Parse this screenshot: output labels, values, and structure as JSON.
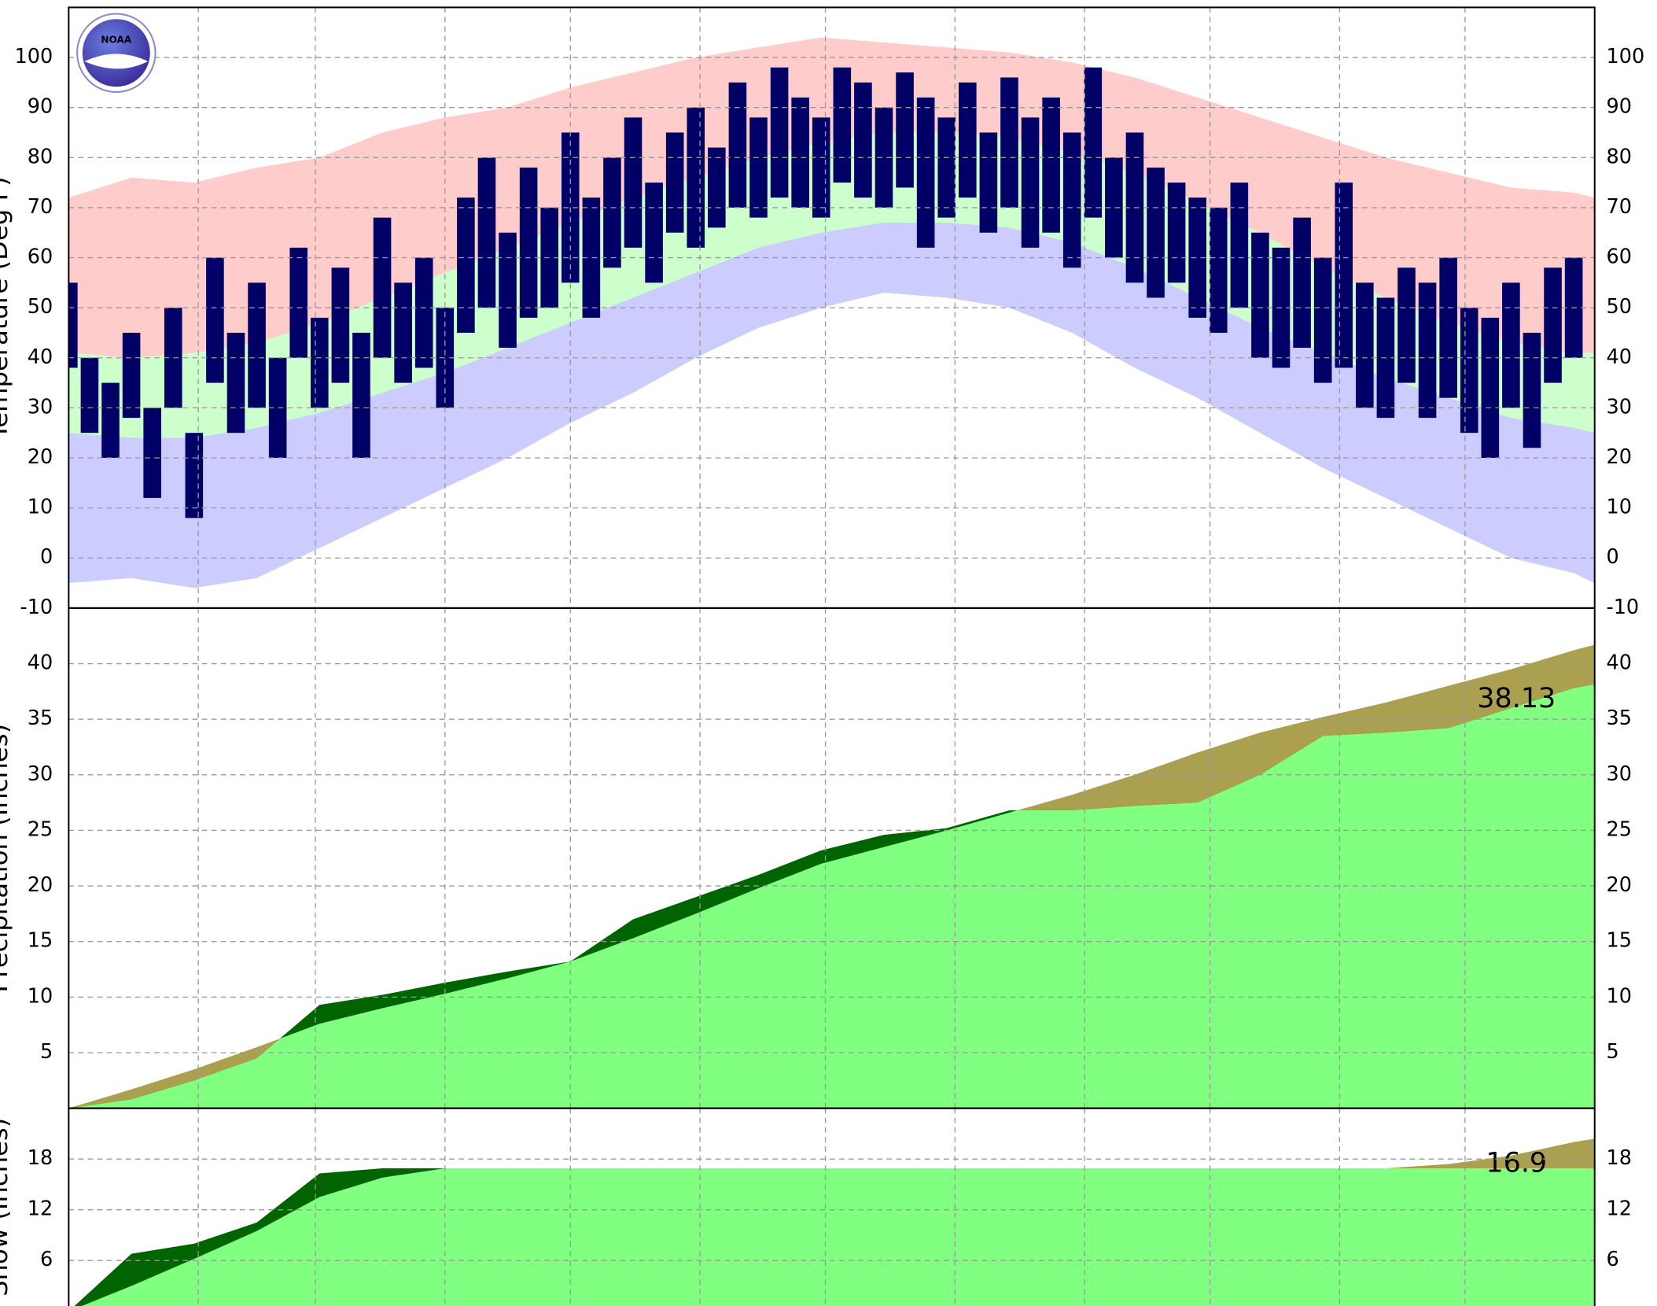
{
  "logo_text": "NOAA",
  "chart_data": [
    {
      "type": "range",
      "ylabel": "Temperature (Deg F)",
      "ylim": [
        -10,
        110
      ],
      "yticks": [
        -10,
        0,
        10,
        20,
        30,
        40,
        50,
        60,
        70,
        80,
        90,
        100
      ],
      "xlim": [
        0,
        365
      ],
      "xticks": [
        31,
        59,
        90,
        120,
        151,
        181,
        212,
        243,
        273,
        304,
        334
      ],
      "grid": true,
      "x": [
        0,
        15,
        30,
        45,
        60,
        75,
        90,
        105,
        120,
        135,
        150,
        165,
        180,
        195,
        210,
        225,
        240,
        255,
        270,
        285,
        300,
        315,
        330,
        345,
        360,
        365
      ],
      "series": [
        {
          "color": "#ffcccc",
          "values": [
            72,
            76,
            75,
            78,
            80,
            85,
            88,
            90,
            94,
            97,
            100,
            102,
            104,
            103,
            102,
            101,
            99,
            96,
            92,
            88,
            84,
            80,
            77,
            74,
            73,
            72
          ]
        },
        {
          "color": "#ccffcc",
          "values": [
            41,
            40,
            41,
            43,
            47,
            52,
            57,
            62,
            67,
            72,
            76,
            80,
            83,
            85,
            85,
            84,
            81,
            77,
            71,
            65,
            58,
            52,
            47,
            43,
            41,
            41
          ]
        },
        {
          "color": "#ccccff",
          "values": [
            25,
            24,
            24,
            26,
            29,
            33,
            37,
            42,
            47,
            52,
            57,
            62,
            65,
            67,
            67,
            66,
            63,
            58,
            52,
            46,
            41,
            36,
            32,
            28,
            26,
            25
          ]
        },
        {
          "color": "#ffffff",
          "values": [
            -5,
            -4,
            -6,
            -4,
            2,
            8,
            14,
            20,
            27,
            33,
            40,
            46,
            50,
            53,
            52,
            50,
            45,
            38,
            32,
            25,
            18,
            12,
            6,
            0,
            -3,
            -5
          ]
        }
      ],
      "observed": {
        "color": "#000066",
        "x": [
          0,
          5,
          10,
          15,
          20,
          25,
          30,
          35,
          40,
          45,
          50,
          55,
          60,
          65,
          70,
          75,
          80,
          85,
          90,
          95,
          100,
          105,
          110,
          115,
          120,
          125,
          130,
          135,
          140,
          145,
          150,
          155,
          160,
          165,
          170,
          175,
          180,
          185,
          190,
          195,
          200,
          205,
          210,
          215,
          220,
          225,
          230,
          235,
          240,
          245,
          250,
          255,
          260,
          265,
          270,
          275,
          280,
          285,
          290,
          295,
          300,
          305,
          310,
          315,
          320,
          325,
          330,
          335,
          340,
          345,
          350,
          355,
          360
        ],
        "high": [
          55,
          40,
          35,
          45,
          30,
          50,
          25,
          60,
          45,
          55,
          40,
          62,
          48,
          58,
          45,
          68,
          55,
          60,
          50,
          72,
          80,
          65,
          78,
          70,
          85,
          72,
          80,
          88,
          75,
          85,
          90,
          82,
          95,
          88,
          98,
          92,
          88,
          98,
          95,
          90,
          97,
          92,
          88,
          95,
          85,
          96,
          88,
          92,
          85,
          98,
          80,
          85,
          78,
          75,
          72,
          70,
          75,
          65,
          62,
          68,
          60,
          75,
          55,
          52,
          58,
          55,
          60,
          50,
          48,
          55,
          45,
          58,
          60
        ],
        "low": [
          38,
          25,
          20,
          28,
          12,
          30,
          8,
          35,
          25,
          30,
          20,
          40,
          30,
          35,
          20,
          40,
          35,
          38,
          30,
          45,
          50,
          42,
          48,
          50,
          55,
          48,
          58,
          62,
          55,
          65,
          62,
          66,
          70,
          68,
          72,
          70,
          68,
          75,
          72,
          70,
          74,
          62,
          68,
          72,
          65,
          70,
          62,
          65,
          58,
          68,
          60,
          55,
          52,
          55,
          48,
          45,
          50,
          40,
          38,
          42,
          35,
          38,
          30,
          28,
          35,
          28,
          32,
          25,
          20,
          30,
          22,
          35,
          40
        ]
      }
    },
    {
      "type": "area",
      "ylabel": "Precipitation (Inches)",
      "ylim": [
        0,
        45
      ],
      "yticks": [
        5,
        10,
        15,
        20,
        25,
        30,
        35,
        40
      ],
      "xlim": [
        0,
        365
      ],
      "xticks": [
        31,
        59,
        90,
        120,
        151,
        181,
        212,
        243,
        273,
        304,
        334
      ],
      "grid": true,
      "overlap_color": "#80ff80",
      "annotation": "38.13",
      "x": [
        0,
        15,
        30,
        45,
        60,
        75,
        90,
        105,
        120,
        135,
        150,
        165,
        180,
        195,
        210,
        225,
        240,
        255,
        270,
        285,
        300,
        315,
        330,
        345,
        360,
        365
      ],
      "series": [
        {
          "color": "#aaa050",
          "values": [
            0,
            1.7,
            3.5,
            5.5,
            7.6,
            9.0,
            10.3,
            11.7,
            13.2,
            15.3,
            17.5,
            19.8,
            22.0,
            23.5,
            25.0,
            26.6,
            28.2,
            30.0,
            32.0,
            33.8,
            35.2,
            36.5,
            38.0,
            39.5,
            41.2,
            41.7
          ]
        },
        {
          "color": "#006400",
          "values": [
            0,
            0.8,
            2.5,
            4.5,
            9.3,
            10.2,
            11.3,
            12.3,
            13.2,
            17.0,
            19.0,
            21.0,
            23.2,
            24.6,
            25.2,
            26.8,
            26.8,
            27.2,
            27.5,
            30.0,
            33.5,
            33.8,
            34.2,
            36.0,
            37.8,
            38.13
          ]
        }
      ]
    },
    {
      "type": "area",
      "ylabel": "Snow (Inches)",
      "ylim": [
        0,
        24
      ],
      "yticks": [
        6,
        12,
        18
      ],
      "xlim": [
        0,
        365
      ],
      "xticks": [
        31,
        59,
        90,
        120,
        151,
        181,
        212,
        243,
        273,
        304,
        334
      ],
      "grid": true,
      "overlap_color": "#80ff80",
      "annotation": "16.9",
      "x": [
        0,
        15,
        30,
        45,
        60,
        75,
        90,
        105,
        120,
        135,
        150,
        165,
        180,
        195,
        210,
        225,
        240,
        255,
        270,
        285,
        300,
        315,
        330,
        345,
        360,
        365
      ],
      "series": [
        {
          "color": "#aaa050",
          "values": [
            0,
            3.0,
            6.2,
            9.5,
            13.5,
            15.8,
            16.9,
            16.9,
            16.9,
            16.9,
            16.9,
            16.9,
            16.9,
            16.9,
            16.9,
            16.9,
            16.9,
            16.9,
            16.9,
            16.9,
            16.9,
            16.9,
            17.4,
            18.4,
            20.0,
            20.4
          ]
        },
        {
          "color": "#006400",
          "values": [
            0,
            6.8,
            8.0,
            10.5,
            16.3,
            16.9,
            16.9,
            16.9,
            16.9,
            16.9,
            16.9,
            16.9,
            16.9,
            16.9,
            16.9,
            16.9,
            16.9,
            16.9,
            16.9,
            16.9,
            16.9,
            16.9,
            16.9,
            16.9,
            16.9,
            16.9
          ]
        }
      ]
    }
  ]
}
